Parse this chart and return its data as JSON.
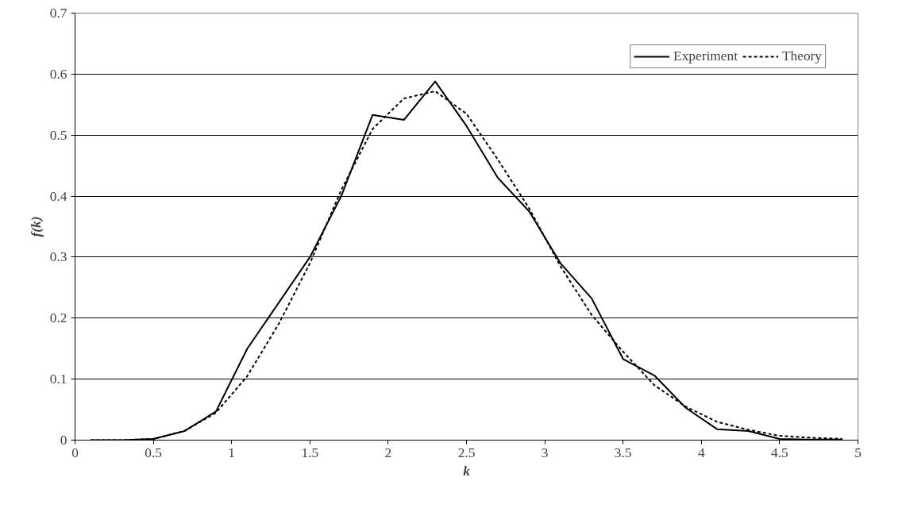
{
  "chart_data": {
    "type": "line",
    "xlabel": "k",
    "ylabel": "f(k)",
    "x": [
      0.1,
      0.3,
      0.5,
      0.7,
      0.9,
      1.1,
      1.3,
      1.5,
      1.7,
      1.9,
      2.1,
      2.3,
      2.5,
      2.7,
      2.9,
      3.1,
      3.3,
      3.5,
      3.7,
      3.9,
      4.1,
      4.3,
      4.5,
      4.7,
      4.9
    ],
    "series": [
      {
        "name": "Experiment",
        "color": "#000000",
        "line_style": "solid",
        "values": [
          0,
          0,
          0.002,
          0.015,
          0.047,
          0.15,
          0.225,
          0.3,
          0.4,
          0.533,
          0.525,
          0.588,
          0.515,
          0.43,
          0.375,
          0.29,
          0.232,
          0.133,
          0.106,
          0.053,
          0.018,
          0.015,
          0.002,
          0.001,
          0.001
        ]
      },
      {
        "name": "Theory",
        "color": "#000000",
        "line_style": "dashed",
        "values": [
          0,
          0,
          0.002,
          0.015,
          0.045,
          0.105,
          0.19,
          0.29,
          0.41,
          0.51,
          0.56,
          0.572,
          0.535,
          0.46,
          0.38,
          0.285,
          0.205,
          0.145,
          0.09,
          0.055,
          0.03,
          0.017,
          0.007,
          0.004,
          0.002
        ]
      }
    ],
    "xlim": [
      0,
      5
    ],
    "xticks": [
      0,
      0.5,
      1,
      1.5,
      2,
      2.5,
      3,
      3.5,
      4,
      4.5,
      5
    ],
    "ylim": [
      0,
      0.7
    ],
    "yticks": [
      0,
      0.1,
      0.2,
      0.3,
      0.4,
      0.5,
      0.6,
      0.7
    ],
    "grid": "y",
    "legend": "top right",
    "marker": "none"
  }
}
